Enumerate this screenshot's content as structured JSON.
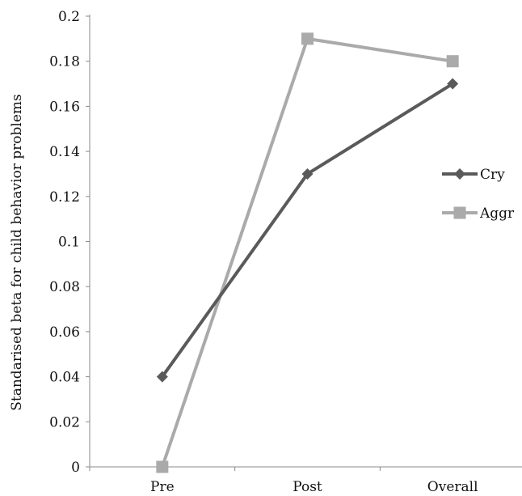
{
  "chart_data": {
    "type": "line",
    "title": "",
    "xlabel": "",
    "ylabel": "Standarised beta for child behavior problems",
    "categories": [
      "Pre",
      "Post",
      "Overall"
    ],
    "ylim": [
      0,
      0.2
    ],
    "yticks": [
      "0",
      "0.02",
      "0.04",
      "0.06",
      "0.08",
      "0.1",
      "0.12",
      "0.14",
      "0.16",
      "0.18",
      "0.2"
    ],
    "grid": false,
    "legend_position": "right",
    "series": [
      {
        "name": "Cry",
        "values": [
          0.04,
          0.13,
          0.17
        ],
        "color": "#5a5a5a",
        "marker": "diamond"
      },
      {
        "name": "Aggr",
        "values": [
          0.0,
          0.19,
          0.18
        ],
        "color": "#aaaaaa",
        "marker": "square"
      }
    ]
  }
}
